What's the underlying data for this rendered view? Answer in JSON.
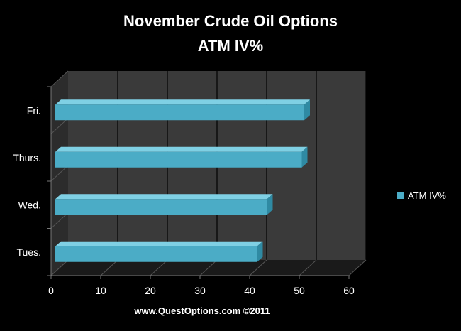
{
  "chart_data": {
    "type": "bar",
    "orientation": "horizontal",
    "three_d": true,
    "title": "November Crude Oil Options",
    "subtitle": "ATM IV%",
    "categories": [
      "Tues.",
      "Wed.",
      "Thurs.",
      "Fri."
    ],
    "series": [
      {
        "name": "ATM IV%",
        "values": [
          41.5,
          43.5,
          50.5,
          51
        ],
        "color": "#4bacc6"
      }
    ],
    "xlim": [
      0,
      60
    ],
    "xticks": [
      0,
      10,
      20,
      30,
      40,
      50,
      60
    ],
    "grid": true,
    "legend": "right",
    "wall_color": "#3a3a3a",
    "footer": "www.QuestOptions.com ©2011"
  }
}
